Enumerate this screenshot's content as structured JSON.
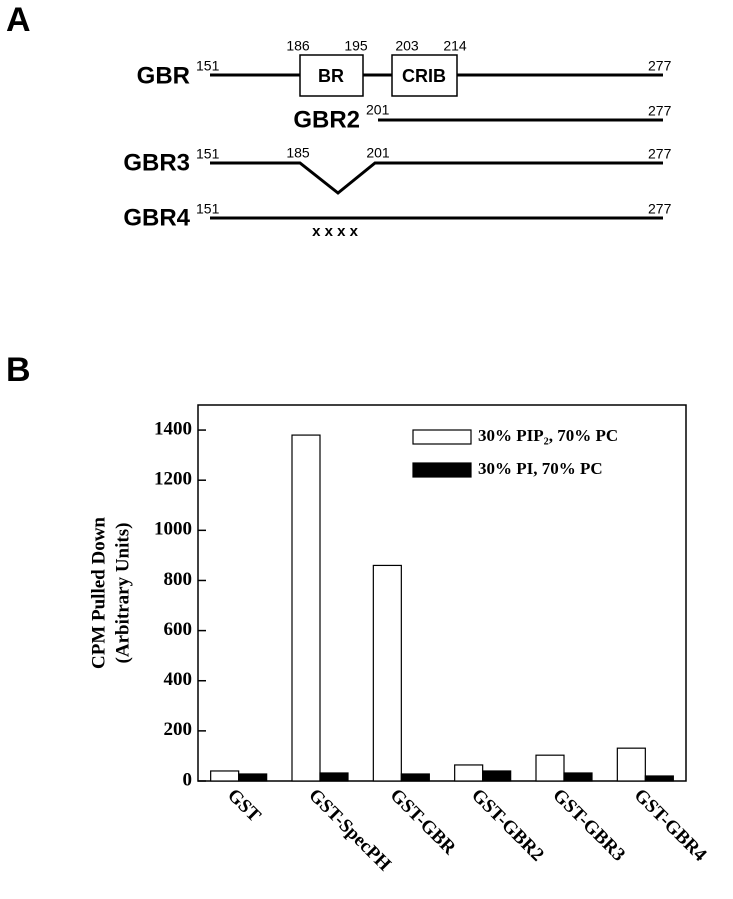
{
  "panel_a": {
    "label": "A",
    "gbr": {
      "name": "GBR",
      "start": "151",
      "br_start": "186",
      "br_end": "195",
      "crib_start": "203",
      "crib_end": "214",
      "end": "277",
      "br": "BR",
      "crib": "CRIB"
    },
    "gbr2": {
      "name": "GBR2",
      "start": "201",
      "end": "277"
    },
    "gbr3": {
      "name": "GBR3",
      "start": "151",
      "gap_start": "185",
      "gap_end": "201",
      "end": "277"
    },
    "gbr4": {
      "name": "GBR4",
      "start": "151",
      "end": "277",
      "mutations": "x x x x"
    }
  },
  "panel_b": {
    "label": "B"
  },
  "chart_data": {
    "type": "bar",
    "y_label": "CPM Pulled Down",
    "y_label_sub": "(Arbitrary Units)",
    "categories": [
      "GST",
      "GST-SpecPH",
      "GST-GBR",
      "GST-GBR2",
      "GST-GBR3",
      "GST-GBR4"
    ],
    "series": [
      {
        "name": "30% PIP₂, 70% PC",
        "color": "#ffffff",
        "values": [
          40,
          1380,
          860,
          64,
          103,
          131
        ]
      },
      {
        "name": "30% PI, 70% PC",
        "color": "#000000",
        "values": [
          28,
          32,
          28,
          40,
          32,
          20
        ]
      }
    ],
    "ylim": [
      0,
      1500
    ],
    "yticks": [
      0,
      200,
      400,
      600,
      800,
      1000,
      1200,
      1400
    ],
    "legend": "upper right"
  }
}
